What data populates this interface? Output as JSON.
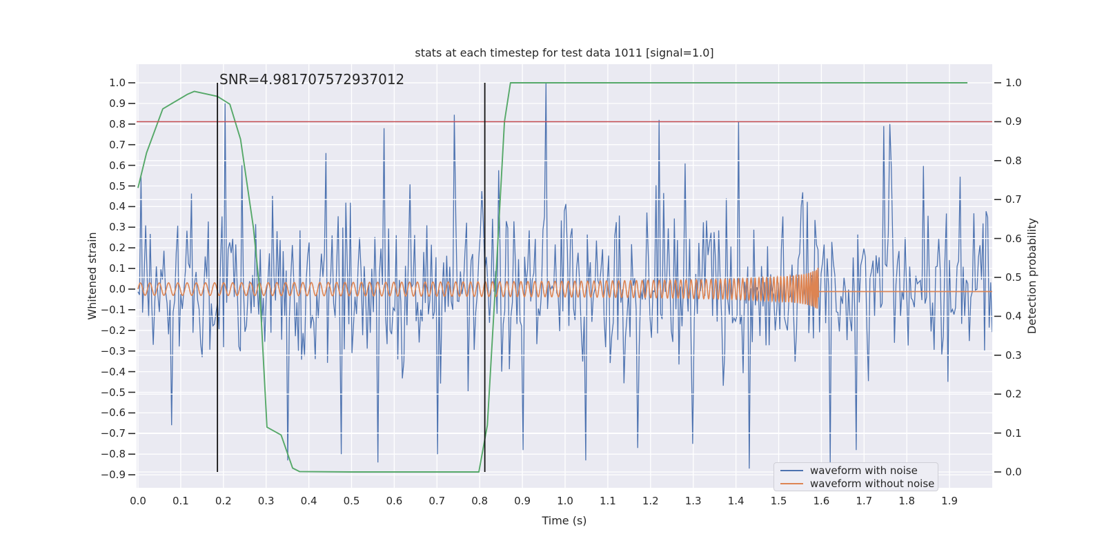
{
  "chart_data": {
    "type": "line",
    "style": "seaborn-darkgrid",
    "title": "stats at each timestep for test data 1011 [signal=1.0]",
    "annotation": {
      "snr_text": "SNR=4.981707572937012"
    },
    "x_axis": {
      "label": "Time (s)",
      "ticks": [
        0.0,
        0.1,
        0.2,
        0.3,
        0.4,
        0.5,
        0.6,
        0.7,
        0.8,
        0.9,
        1.0,
        1.1,
        1.2,
        1.3,
        1.4,
        1.5,
        1.6,
        1.7,
        1.8,
        1.9
      ],
      "range": [
        -0.003,
        2.0
      ],
      "grid": true
    },
    "y_axis_left": {
      "label": "Whitened strain",
      "ticks": [
        1.0,
        0.9,
        0.8,
        0.7,
        0.6,
        0.5,
        0.4,
        0.3,
        0.2,
        0.1,
        0.0,
        -0.1,
        -0.2,
        -0.3,
        -0.4,
        -0.5,
        -0.6,
        -0.7,
        -0.8,
        -0.9
      ],
      "range": [
        -0.963,
        1.09
      ],
      "grid": true
    },
    "y_axis_right": {
      "label": "Detection probability",
      "ticks": [
        1.0,
        0.9,
        0.8,
        0.7,
        0.6,
        0.5,
        0.4,
        0.3,
        0.2,
        0.1,
        0.0
      ],
      "range": [
        -0.041,
        1.048
      ],
      "grid": true
    },
    "series": [
      {
        "name": "waveform with noise",
        "color": "#4c72b0",
        "axis": "left",
        "kind": "noise",
        "n_points": 560,
        "t_start": 0.0,
        "t_end": 2.0,
        "sigma": 0.21,
        "seed": 1011,
        "spike_prob": 0.012,
        "spike_gain": 1.55,
        "observed_peaks": [
          [
            0.205,
            0.9
          ],
          [
            0.44,
            0.66
          ],
          [
            0.575,
            0.78
          ],
          [
            0.74,
            0.845
          ],
          [
            0.955,
            1.0
          ],
          [
            1.22,
            0.82
          ],
          [
            1.405,
            0.81
          ],
          [
            1.745,
            0.79
          ],
          [
            1.76,
            0.8
          ],
          [
            0.08,
            -0.66
          ],
          [
            0.35,
            -0.83
          ],
          [
            0.475,
            -0.8
          ],
          [
            0.56,
            -0.84
          ],
          [
            0.7,
            -0.8
          ],
          [
            0.9,
            -0.78
          ],
          [
            1.05,
            -0.83
          ],
          [
            1.17,
            -0.77
          ],
          [
            1.3,
            -0.75
          ],
          [
            1.43,
            -0.87
          ],
          [
            1.62,
            -0.85
          ],
          [
            1.68,
            -0.78
          ]
        ]
      },
      {
        "name": "waveform without noise",
        "color": "#dd8452",
        "axis": "left",
        "kind": "chirp",
        "f_coef": 53.7,
        "f_exp": -0.375,
        "t_merge": 1.603,
        "amp_coef": 0.0337,
        "amp_exp": -0.25,
        "amp_max": 0.13,
        "t_cutoff": 1.593,
        "post_cutoff_value": -0.012,
        "t_end": 2.0
      },
      {
        "name": "detection probability",
        "color": "#55a868",
        "axis": "right",
        "kind": "line",
        "points": [
          [
            0.0,
            0.73
          ],
          [
            0.02,
            0.82
          ],
          [
            0.058,
            0.933
          ],
          [
            0.115,
            0.97
          ],
          [
            0.132,
            0.978
          ],
          [
            0.186,
            0.965
          ],
          [
            0.215,
            0.945
          ],
          [
            0.24,
            0.855
          ],
          [
            0.27,
            0.63
          ],
          [
            0.285,
            0.468
          ],
          [
            0.302,
            0.115
          ],
          [
            0.335,
            0.095
          ],
          [
            0.362,
            0.01
          ],
          [
            0.378,
            0.001
          ],
          [
            0.5,
            0.0
          ],
          [
            0.798,
            0.0
          ],
          [
            0.818,
            0.12
          ],
          [
            0.838,
            0.5
          ],
          [
            0.858,
            0.9
          ],
          [
            0.872,
            1.0
          ],
          [
            1.4,
            1.0
          ],
          [
            1.942,
            1.0
          ]
        ]
      },
      {
        "name": "threshold",
        "color": "#c44e52",
        "axis": "right",
        "kind": "hline",
        "value": 0.9
      },
      {
        "name": "marker window",
        "color": "#111111",
        "axis": "right",
        "kind": "vlines",
        "x_values": [
          0.186,
          0.812
        ],
        "y_span": [
          0.0,
          1.0
        ]
      }
    ],
    "legend": {
      "position": "lower right",
      "items": [
        {
          "label": "waveform with noise",
          "color": "#4c72b0"
        },
        {
          "label": "waveform without noise",
          "color": "#dd8452"
        }
      ]
    },
    "colors": {
      "plot_background": "#eaeaf2",
      "figure_background": "#ffffff",
      "gridline": "#ffffff",
      "tick_text": "#262626"
    }
  }
}
